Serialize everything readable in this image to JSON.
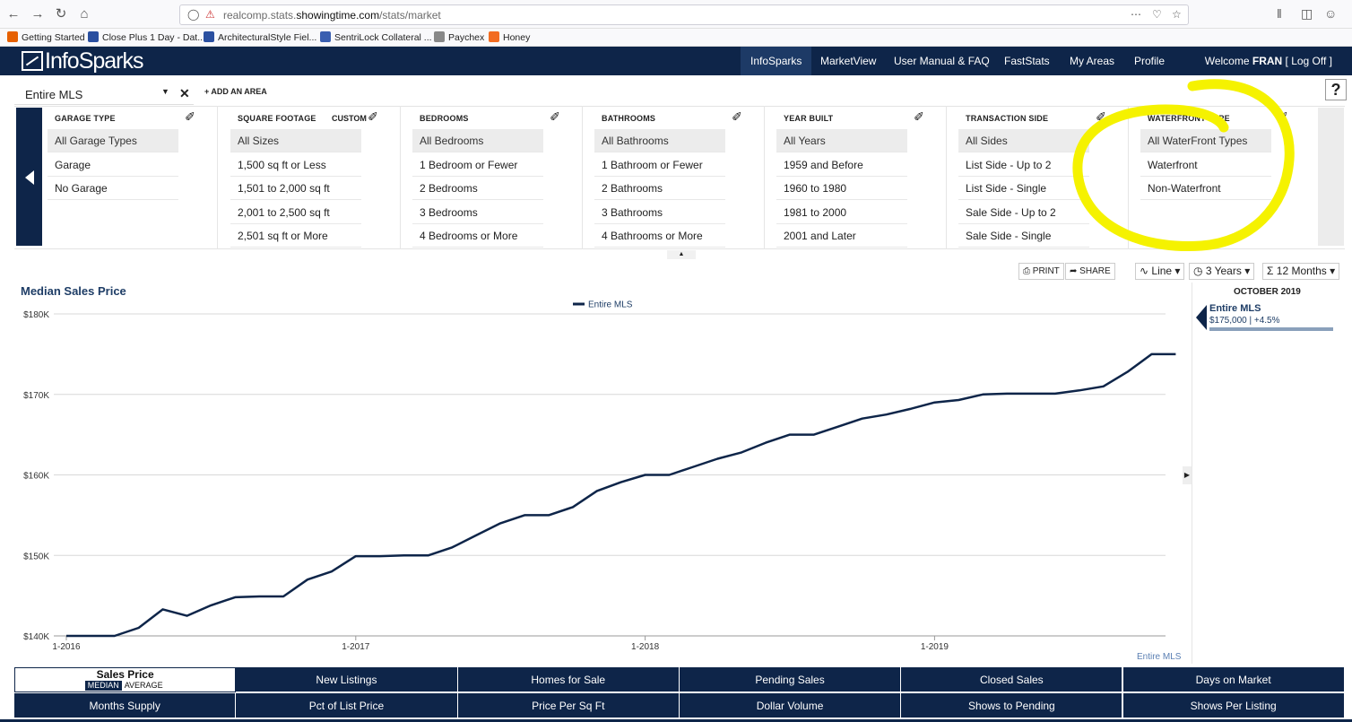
{
  "browser": {
    "url_prefix": "realcomp.stats.",
    "url_domain": "showingtime.com",
    "url_path": "/stats/market",
    "bookmarks": [
      {
        "label": "Getting Started",
        "color": "#e66000"
      },
      {
        "label": "Close Plus 1 Day - Dat...",
        "color": "#2a4fa0"
      },
      {
        "label": "ArchitecturalStyle Fiel...",
        "color": "#2a4fa0"
      },
      {
        "label": "SentriLock Collateral ...",
        "color": "#3a5fb0"
      },
      {
        "label": "Paychex",
        "color": "#888888"
      },
      {
        "label": "Honey",
        "color": "#f26c21"
      }
    ]
  },
  "header": {
    "logo_info": "Info",
    "logo_sparks": "Sparks",
    "nav": [
      "InfoSparks",
      "MarketView",
      "User Manual & FAQ",
      "FastStats",
      "My Areas",
      "Profile"
    ],
    "welcome_prefix": "Welcome ",
    "user": "FRAN",
    "logoff": " [ Log Off ]"
  },
  "area": {
    "name": "Entire MLS",
    "add_label": "+ ADD AN AREA",
    "help": "?"
  },
  "filters": [
    {
      "title": "GARAGE TYPE",
      "options": [
        "All Garage Types",
        "Garage",
        "No Garage"
      ]
    },
    {
      "title": "SQUARE FOOTAGE",
      "custom": "CUSTOM",
      "options": [
        "All Sizes",
        "1,500 sq ft or Less",
        "1,501 to 2,000 sq ft",
        "2,001 to 2,500 sq ft",
        "2,501 sq ft or More"
      ]
    },
    {
      "title": "BEDROOMS",
      "options": [
        "All Bedrooms",
        "1 Bedroom or Fewer",
        "2 Bedrooms",
        "3 Bedrooms",
        "4 Bedrooms or More"
      ]
    },
    {
      "title": "BATHROOMS",
      "options": [
        "All Bathrooms",
        "1 Bathroom or Fewer",
        "2 Bathrooms",
        "3 Bathrooms",
        "4 Bathrooms or More"
      ]
    },
    {
      "title": "YEAR BUILT",
      "options": [
        "All Years",
        "1959 and Before",
        "1960 to 1980",
        "1981 to 2000",
        "2001 and Later"
      ]
    },
    {
      "title": "TRANSACTION SIDE",
      "options": [
        "All Sides",
        "List Side - Up to 2",
        "List Side - Single",
        "Sale Side - Up to 2",
        "Sale Side - Single"
      ]
    },
    {
      "title": "WATERFRONT TYPE",
      "options": [
        "All WaterFront Types",
        "Waterfront",
        "Non-Waterfront"
      ]
    }
  ],
  "tools": {
    "print": "PRINT",
    "share": "SHARE",
    "chart_type": "Line",
    "period": "3 Years",
    "rollup": "12 Months"
  },
  "highlight_color": "#f5f200",
  "chart_data": {
    "type": "line",
    "title": "Median Sales Price",
    "series": [
      {
        "name": "Entire MLS",
        "color": "#0e2549",
        "values": [
          140000,
          140000,
          140000,
          141000,
          143300,
          142500,
          143800,
          144800,
          144900,
          144900,
          147000,
          148000,
          149900,
          149900,
          150000,
          150000,
          151000,
          152500,
          154000,
          155000,
          155000,
          156000,
          158000,
          159100,
          160000,
          160000,
          161000,
          162000,
          162800,
          164000,
          165000,
          165000,
          166000,
          167000,
          167500,
          168200,
          169000,
          169300,
          170000,
          170100,
          170100,
          170100,
          170500,
          171000,
          172800,
          175000,
          175000
        ]
      }
    ],
    "x_start": "2015-12",
    "x_ticks": [
      "1-2016",
      "1-2017",
      "1-2018",
      "1-2019"
    ],
    "y_ticks": [
      "$140K",
      "$150K",
      "$160K",
      "$170K",
      "$180K"
    ],
    "ylim": [
      140000,
      180000
    ],
    "legend": "top-center",
    "grid": true,
    "side_panel": {
      "month": "OCTOBER 2019",
      "name": "Entire MLS",
      "value": "$175,000 | +4.5%"
    },
    "source": "Entire MLS"
  },
  "metrics": {
    "active": "Sales Price",
    "stat_median": "MEDIAN",
    "stat_average": "AVERAGE",
    "row1": [
      "New Listings",
      "Homes for Sale",
      "Pending Sales",
      "Closed Sales",
      "Days on Market"
    ],
    "row2": [
      "Months Supply",
      "Pct of List Price",
      "Price Per Sq Ft",
      "Dollar Volume",
      "Shows to Pending",
      "Shows Per Listing"
    ]
  }
}
